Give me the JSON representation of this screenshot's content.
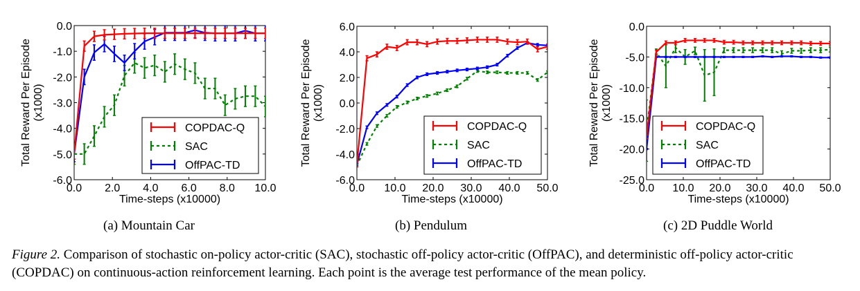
{
  "figure": {
    "label": "Figure 2.",
    "caption": "Comparison of stochastic on-policy actor-critic (SAC), stochastic off-policy actor-critic (OffPAC), and deterministic off-policy actor-critic (COPDAC) on continuous-action reinforcement learning. Each point is the average test performance of the mean policy.",
    "subcaptions": [
      "(a) Mountain Car",
      "(b) Pendulum",
      "(c) 2D Puddle World"
    ]
  },
  "colors": {
    "COPDAC-Q": "#ff0000",
    "SAC": "#008000",
    "OffPAC-TD": "#0000ff"
  },
  "chart_data": [
    {
      "type": "line",
      "title": "",
      "xlabel": "Time-steps (x10000)",
      "ylabel": [
        "Total Reward Per Episode",
        "(x1000)"
      ],
      "xlim": [
        0,
        10
      ],
      "ylim": [
        -6,
        0
      ],
      "xticks": [
        "0.0",
        "2.0",
        "4.0",
        "6.0",
        "8.0",
        "10.0"
      ],
      "yticks": [
        "0.0",
        "-1.0",
        "-2.0",
        "-3.0",
        "-4.0",
        "-5.0",
        "-6.0"
      ],
      "legend": "lower-right",
      "x": [
        0,
        0.53,
        1.05,
        1.58,
        2.1,
        2.63,
        3.16,
        3.68,
        4.21,
        4.74,
        5.26,
        5.79,
        6.32,
        6.84,
        7.37,
        7.89,
        8.42,
        8.95,
        9.47,
        10
      ],
      "series": [
        {
          "name": "COPDAC-Q",
          "style": "solid",
          "err": 0.2,
          "values": [
            -5,
            -0.8,
            -0.42,
            -0.36,
            -0.34,
            -0.32,
            -0.31,
            -0.3,
            -0.3,
            -0.3,
            -0.3,
            -0.3,
            -0.3,
            -0.3,
            -0.3,
            -0.3,
            -0.3,
            -0.3,
            -0.3,
            -0.3
          ]
        },
        {
          "name": "SAC",
          "style": "dashed",
          "err": 0.4,
          "values": [
            -5,
            -5,
            -4.3,
            -3.55,
            -3.1,
            -1.95,
            -1.45,
            -1.65,
            -1.55,
            -1.8,
            -1.5,
            -1.7,
            -1.85,
            -2.45,
            -2.45,
            -3.1,
            -2.85,
            -2.75,
            -2.75,
            -3.15
          ]
        },
        {
          "name": "OffPAC-TD",
          "style": "solid",
          "err": 0.3,
          "values": [
            -5,
            -2.0,
            -1.05,
            -0.72,
            -1.1,
            -1.45,
            -1.0,
            -0.62,
            -0.45,
            -0.28,
            -0.28,
            -0.28,
            -0.18,
            -0.28,
            -0.3,
            -0.3,
            -0.3,
            -0.2,
            -0.3,
            -0.3
          ]
        }
      ]
    },
    {
      "type": "line",
      "title": "",
      "xlabel": "Time-steps (x10000)",
      "ylabel": [
        "Total Reward Per Episode",
        "(x1000)"
      ],
      "xlim": [
        0,
        50
      ],
      "ylim": [
        -6,
        6
      ],
      "xticks": [
        "0.0",
        "10.0",
        "20.0",
        "30.0",
        "40.0",
        "50.0"
      ],
      "yticks": [
        "6.0",
        "4.0",
        "2.0",
        "0.0",
        "-2.0",
        "-4.0",
        "-6.0"
      ],
      "legend": "lower-right",
      "x": [
        0,
        2.63,
        5.26,
        7.89,
        10.5,
        13.2,
        15.8,
        18.4,
        21.1,
        23.7,
        26.3,
        28.9,
        31.6,
        34.2,
        36.8,
        39.5,
        42.1,
        44.7,
        47.4,
        50
      ],
      "series": [
        {
          "name": "COPDAC-Q",
          "style": "solid",
          "err": 0.2,
          "values": [
            -4.8,
            3.5,
            3.8,
            4.4,
            4.3,
            4.75,
            4.75,
            4.6,
            4.8,
            4.85,
            4.85,
            4.9,
            4.95,
            4.95,
            4.95,
            4.8,
            4.75,
            4.8,
            4.2,
            4.4
          ]
        },
        {
          "name": "SAC",
          "style": "dashed",
          "err": 0.1,
          "values": [
            -4.9,
            -3.2,
            -1.8,
            -1.0,
            -0.3,
            0.05,
            0.35,
            0.55,
            0.75,
            1.0,
            1.3,
            1.9,
            2.5,
            2.4,
            2.4,
            2.35,
            2.35,
            2.35,
            1.8,
            2.4
          ]
        },
        {
          "name": "OffPAC-TD",
          "style": "solid",
          "err": 0.1,
          "values": [
            -4.8,
            -1.9,
            -0.8,
            -0.15,
            0.5,
            1.4,
            2.0,
            2.25,
            2.35,
            2.45,
            2.55,
            2.62,
            2.7,
            2.8,
            3.0,
            3.7,
            4.3,
            4.7,
            4.55,
            4.5
          ]
        }
      ]
    },
    {
      "type": "line",
      "title": "",
      "xlabel": "Time-steps (x10000)",
      "ylabel": [
        "Total Reward Per Episode",
        "(x1000)"
      ],
      "xlim": [
        0,
        50
      ],
      "ylim": [
        -25,
        0
      ],
      "xticks": [
        "0.0",
        "10.0",
        "20.0",
        "30.0",
        "40.0",
        "50.0"
      ],
      "yticks": [
        "0.0",
        "-5.0",
        "-10.0",
        "-15.0",
        "-20.0",
        "-25.0"
      ],
      "legend": "lower-left",
      "x": [
        0,
        2.63,
        5.26,
        7.89,
        10.5,
        13.2,
        15.8,
        18.4,
        21.1,
        23.7,
        26.3,
        28.9,
        31.6,
        34.2,
        36.8,
        39.5,
        42.1,
        44.7,
        47.4,
        50
      ],
      "series": [
        {
          "name": "COPDAC-Q",
          "style": "solid",
          "err": 0.3,
          "values": [
            -18,
            -4.2,
            -2.7,
            -2.7,
            -2.3,
            -2.3,
            -2.3,
            -2.3,
            -2.6,
            -2.6,
            -2.7,
            -2.7,
            -2.7,
            -2.7,
            -2.7,
            -2.7,
            -2.7,
            -2.8,
            -2.8,
            -2.8
          ]
        },
        {
          "name": "SAC",
          "style": "dashed",
          "errs": [
            5,
            0.5,
            3.5,
            0.8,
            1.2,
            0.6,
            4.2,
            3.8,
            0.4,
            0.4,
            0.4,
            0.4,
            0.4,
            0.4,
            0.5,
            0.4,
            0.4,
            0.4,
            0.4,
            0.4
          ],
          "values": [
            -17,
            -4.2,
            -6.5,
            -3.5,
            -5.0,
            -4.0,
            -8.0,
            -7.5,
            -3.9,
            -3.9,
            -3.9,
            -3.9,
            -3.9,
            -3.9,
            -4.5,
            -4.0,
            -4.0,
            -3.9,
            -3.9,
            -3.8
          ]
        },
        {
          "name": "OffPAC-TD",
          "style": "solid",
          "err": 0.1,
          "values": [
            -20,
            -5.0,
            -5.0,
            -5.0,
            -5.0,
            -5.0,
            -5.0,
            -5.0,
            -5.0,
            -5.0,
            -5.0,
            -5.0,
            -4.9,
            -5.0,
            -4.9,
            -4.9,
            -5.0,
            -5.0,
            -5.1,
            -5.1
          ]
        }
      ]
    }
  ]
}
